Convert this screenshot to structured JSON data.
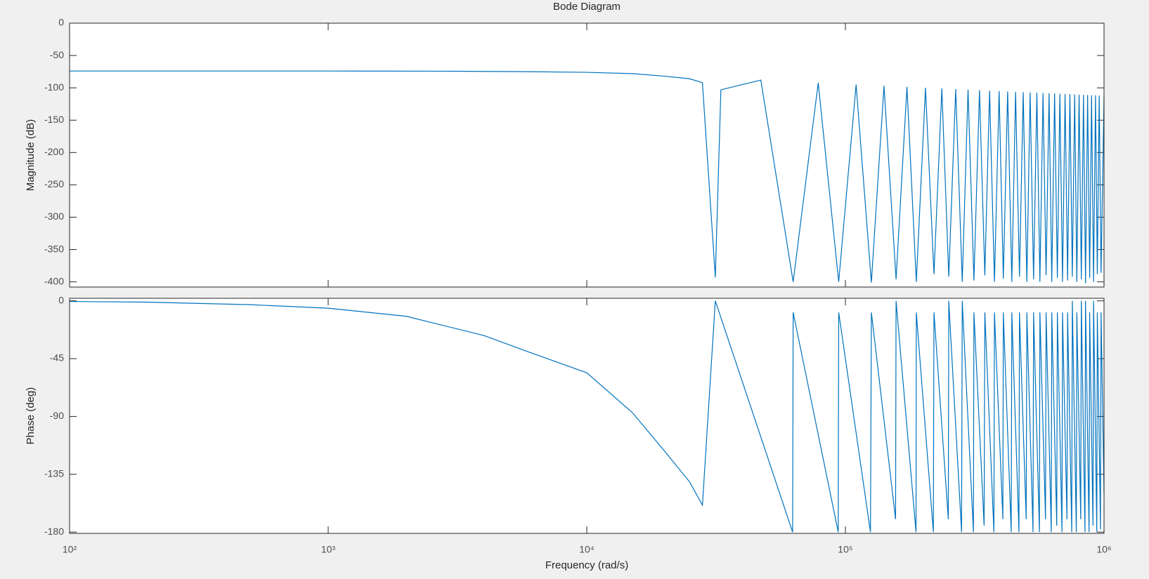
{
  "chart_data": {
    "type": "line",
    "title": "Bode Diagram",
    "xlabel": "Frequency  (rad/s)",
    "xscale": "log",
    "xlim": [
      100,
      1000000
    ],
    "xticks": [
      {
        "value": 100,
        "label": "10²"
      },
      {
        "value": 1000,
        "label": "10³"
      },
      {
        "value": 10000,
        "label": "10⁴"
      },
      {
        "value": 100000,
        "label": "10⁵"
      },
      {
        "value": 1000000,
        "label": "10⁶"
      }
    ],
    "panels": [
      {
        "ylabel": "Magnitude (dB)",
        "color": "#0072bd",
        "ylim": [
          -408,
          0
        ],
        "yticks": [
          0,
          -50,
          -100,
          -150,
          -200,
          -250,
          -300,
          -350,
          -400
        ],
        "x": [
          100,
          1000,
          3000,
          6000,
          10000,
          15000,
          20000,
          25000,
          28000,
          31400,
          33000,
          47100,
          62800,
          78500,
          94200,
          110000,
          126000,
          141000,
          157000,
          173000,
          188000,
          204000,
          220000,
          236000,
          251000,
          267000,
          283000,
          298000,
          314000,
          330000,
          346000,
          361000,
          377000,
          393000,
          408000,
          424000,
          440000,
          455000,
          471000,
          487000,
          503000,
          518000,
          534000,
          550000,
          565000,
          581000,
          597000,
          613000,
          628000,
          644000,
          660000,
          675000,
          691000,
          707000,
          723000,
          738000,
          754000,
          770000,
          785000,
          801000,
          817000,
          833000,
          848000,
          864000,
          880000,
          895000,
          911000,
          927000,
          942000,
          958000,
          974000,
          1000000
        ],
        "values": [
          -74,
          -74,
          -74.3,
          -75,
          -76,
          -78,
          -82,
          -86,
          -92,
          -393,
          -103,
          -88,
          -400,
          -92.3,
          -400,
          -95,
          -401,
          -96.9,
          -396,
          -98.5,
          -400,
          -99.8,
          -388,
          -101,
          -392,
          -101.9,
          -400,
          -102.8,
          -398,
          -103.6,
          -390,
          -104.3,
          -400,
          -104.9,
          -395,
          -105.5,
          -400,
          -106.1,
          -392,
          -106.6,
          -400,
          -107.1,
          -396,
          -107.6,
          -400,
          -108,
          -390,
          -108.4,
          -400,
          -108.8,
          -394,
          -109.2,
          -400,
          -109.5,
          -398,
          -109.9,
          -392,
          -110.2,
          -400,
          -110.5,
          -396,
          -110.8,
          -402,
          -111.1,
          -394,
          -111.4,
          -400,
          -111.6,
          -388,
          -111.9,
          -386,
          -114
        ]
      },
      {
        "ylabel": "Phase (deg)",
        "color": "#0072bd",
        "ylim": [
          -181,
          2
        ],
        "yticks": [
          0,
          -45,
          -90,
          -135,
          -180
        ],
        "x": [
          100,
          200,
          500,
          1000,
          2000,
          4000,
          6000,
          10000,
          15000,
          20000,
          25000,
          28000,
          31400,
          62500,
          62800,
          93800,
          94200,
          125000,
          126000,
          156300,
          157000,
          187500,
          188000,
          218800,
          220000,
          250000,
          251000,
          281300,
          283000,
          312600,
          314000,
          343800,
          346000,
          375100,
          377000,
          406300,
          408000,
          437600,
          440000,
          468900,
          471000,
          500100,
          503000,
          531400,
          534000,
          562600,
          565000,
          593900,
          597000,
          625100,
          628000,
          656400,
          660000,
          687700,
          691000,
          718900,
          723000,
          750200,
          754000,
          781400,
          785000,
          812700,
          817000,
          843900,
          848000,
          875200,
          880000,
          906500,
          911000,
          937700,
          942000,
          969000,
          974000,
          1000000
        ],
        "values": [
          -0.5,
          -1,
          -3,
          -5.7,
          -12,
          -27,
          -40,
          -56,
          -87,
          -117,
          -141,
          -159,
          0,
          -180,
          -9,
          -180,
          -9,
          -180,
          -9,
          -170,
          0,
          -180,
          -9,
          -180,
          -9,
          -170,
          0,
          -180,
          0,
          -180,
          -9,
          -175,
          -9,
          -180,
          -9,
          -170,
          -9,
          -180,
          -9,
          -180,
          -9,
          -170,
          -9,
          -180,
          -9,
          -180,
          -9,
          -170,
          -9,
          -180,
          -9,
          -175,
          -9,
          -180,
          -9,
          -170,
          -9,
          -180,
          0,
          -180,
          -9,
          -170,
          0,
          -180,
          0,
          -180,
          -9,
          -175,
          0,
          -180,
          -9,
          -178,
          -9,
          -150
        ]
      }
    ]
  }
}
